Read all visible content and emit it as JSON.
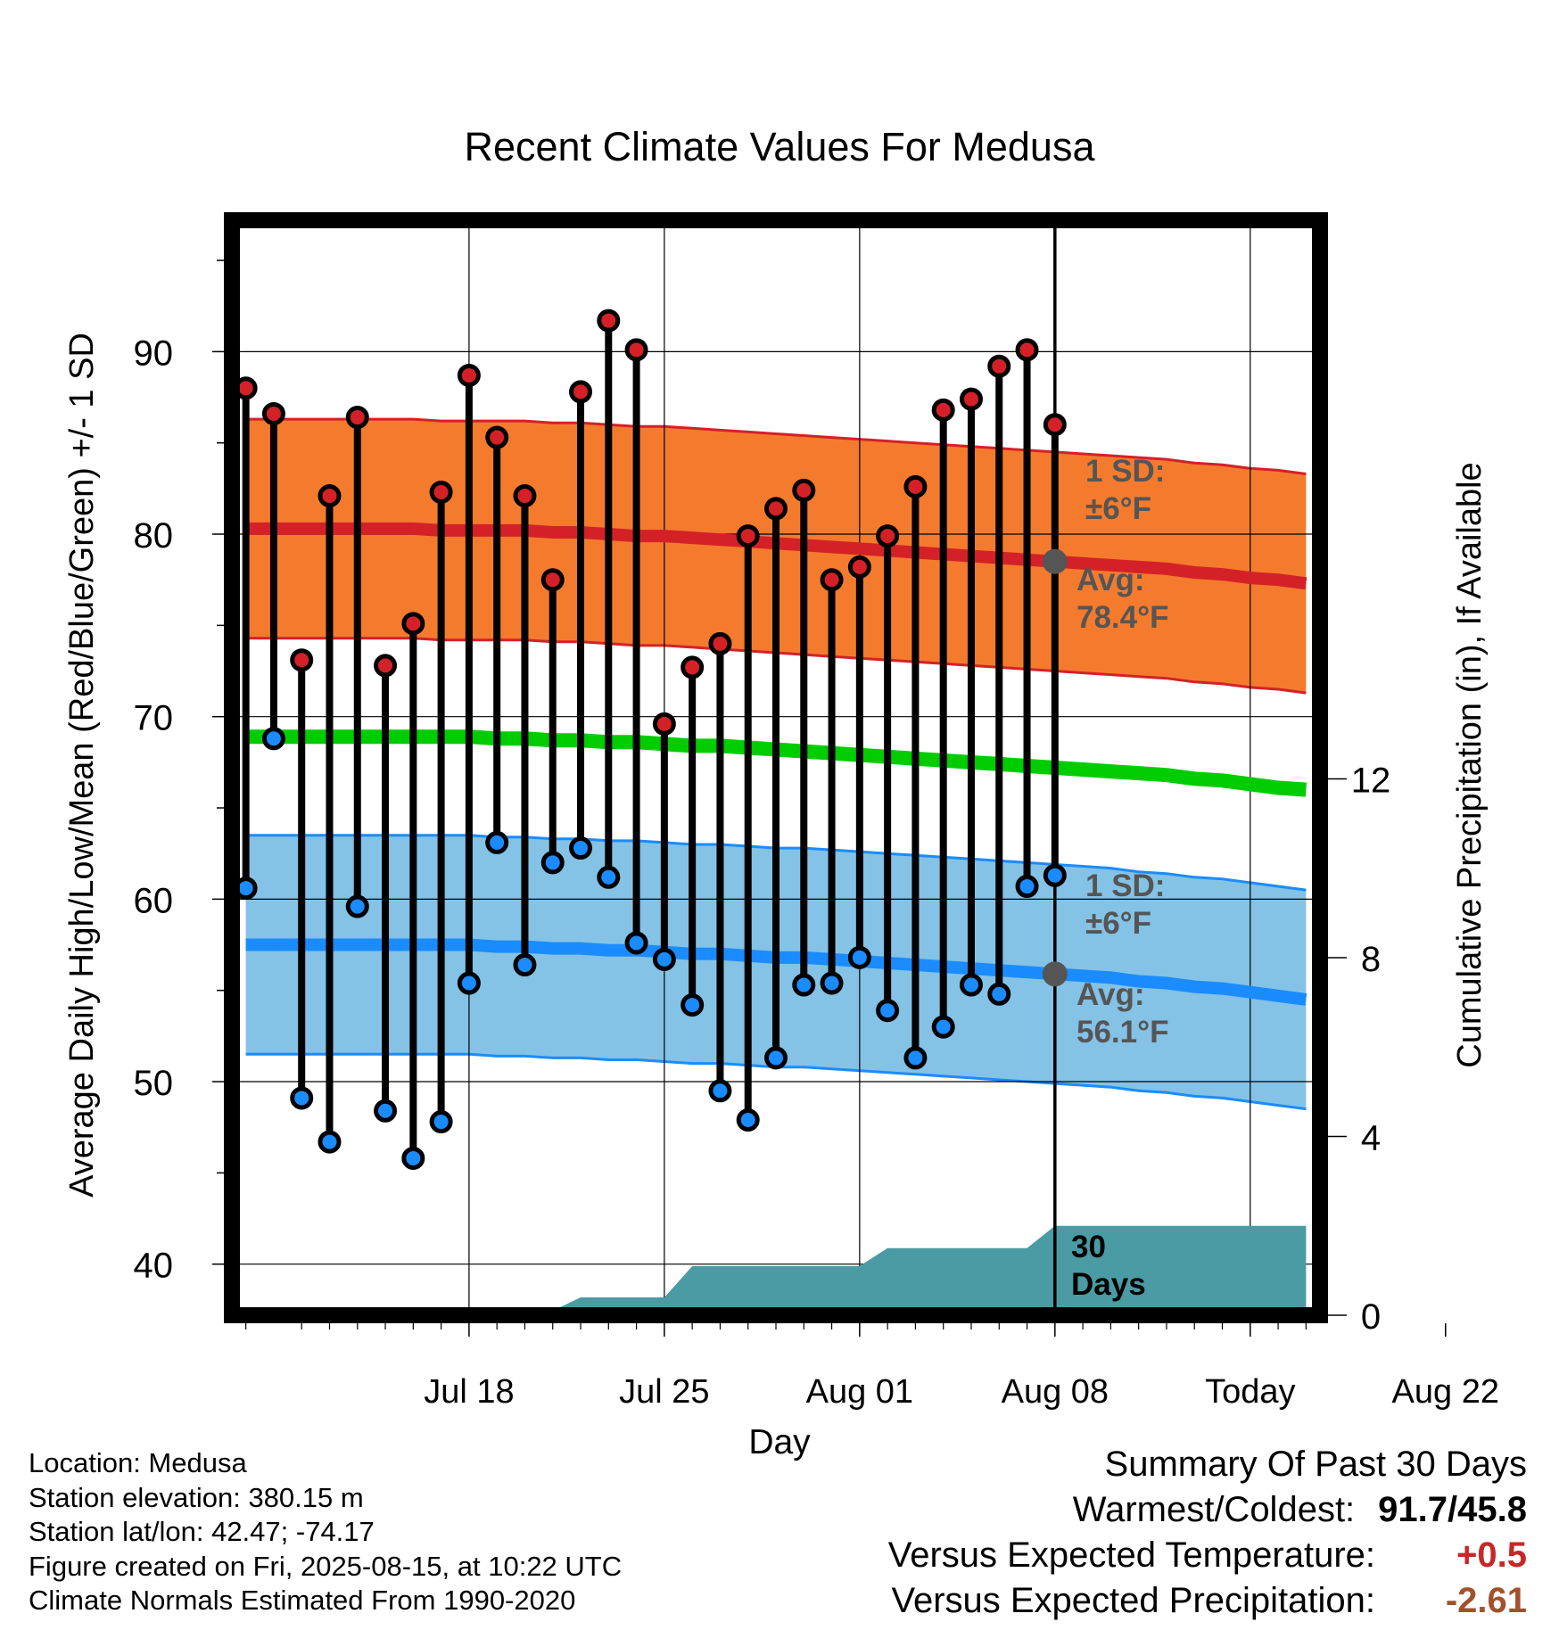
{
  "title": "Recent Climate Values For Medusa",
  "chart_data": {
    "type": "line",
    "title": "Recent Climate Values For Medusa",
    "xlabel": "Day",
    "ylabel_left": "Average Daily High/Low/Mean (Red/Blue/Green) +/- 1 SD",
    "ylabel_right": "Cumulative Precipitation (in), If Available",
    "x_ticks": [
      "Jul 18",
      "Jul 25",
      "Aug 01",
      "Aug 08",
      "Today",
      "Aug 22"
    ],
    "y_left_ticks": [
      40,
      50,
      60,
      70,
      80,
      90
    ],
    "y_right_ticks": [
      0,
      4,
      8,
      12
    ],
    "ylim_left": [
      37.2,
      97.2
    ],
    "ylim_right": [
      0,
      24.5
    ],
    "x_range_days": [
      -29.5,
      9.5
    ],
    "today_offset_days": 0,
    "days": [
      -29,
      -28,
      -27,
      -26,
      -25,
      -24,
      -23,
      -22,
      -21,
      -20,
      -19,
      -18,
      -17,
      -16,
      -15,
      -14,
      -13,
      -12,
      -11,
      -10,
      -9,
      -8,
      -7,
      -6,
      -5,
      -4,
      -3,
      -2,
      -1,
      0,
      1,
      2,
      3,
      4,
      5,
      6,
      7,
      8,
      9
    ],
    "daily_high": [
      88.0,
      86.6,
      73.1,
      82.1,
      86.4,
      72.8,
      75.1,
      82.3,
      88.7,
      85.3,
      82.1,
      77.5,
      87.8,
      91.7,
      90.1,
      69.6,
      72.7,
      74.0,
      79.9,
      81.4,
      82.4,
      77.5,
      78.2,
      79.9,
      82.6,
      86.8,
      87.4,
      89.2,
      90.1,
      86.0
    ],
    "daily_low": [
      60.6,
      68.8,
      49.1,
      46.7,
      59.6,
      48.4,
      45.8,
      47.8,
      55.4,
      63.1,
      56.4,
      62.0,
      62.8,
      61.2,
      57.6,
      56.7,
      54.2,
      49.5,
      47.9,
      51.3,
      55.3,
      55.4,
      56.8,
      53.9,
      51.3,
      53.0,
      55.3,
      54.8,
      60.7,
      61.3
    ],
    "normal_high": [
      80.3,
      80.3,
      80.3,
      80.3,
      80.3,
      80.3,
      80.3,
      80.2,
      80.2,
      80.2,
      80.2,
      80.1,
      80.1,
      80.0,
      79.9,
      79.9,
      79.8,
      79.7,
      79.6,
      79.5,
      79.4,
      79.3,
      79.2,
      79.1,
      79.0,
      78.9,
      78.8,
      78.7,
      78.6,
      78.5,
      78.4,
      78.3,
      78.2,
      78.1,
      77.9,
      77.8,
      77.6,
      77.5,
      77.3
    ],
    "normal_mean": [
      68.9,
      68.9,
      68.9,
      68.9,
      68.9,
      68.9,
      68.9,
      68.9,
      68.9,
      68.8,
      68.8,
      68.7,
      68.7,
      68.6,
      68.6,
      68.5,
      68.4,
      68.4,
      68.3,
      68.2,
      68.1,
      68.0,
      67.9,
      67.8,
      67.7,
      67.6,
      67.5,
      67.4,
      67.3,
      67.2,
      67.1,
      67.0,
      66.9,
      66.8,
      66.6,
      66.5,
      66.3,
      66.1,
      66.0
    ],
    "normal_low": [
      57.5,
      57.5,
      57.5,
      57.5,
      57.5,
      57.5,
      57.5,
      57.5,
      57.5,
      57.4,
      57.4,
      57.3,
      57.3,
      57.2,
      57.2,
      57.1,
      57.0,
      57.0,
      56.9,
      56.8,
      56.8,
      56.7,
      56.6,
      56.5,
      56.4,
      56.3,
      56.2,
      56.1,
      56.0,
      55.9,
      55.8,
      55.7,
      55.5,
      55.4,
      55.2,
      55.1,
      54.9,
      54.7,
      54.5
    ],
    "sd_high": 6,
    "sd_low": 6,
    "cumulative_precip": [
      0,
      0,
      0,
      0,
      0,
      0,
      0,
      0,
      0,
      0,
      0,
      0.1,
      0.4,
      0.4,
      0.4,
      0.4,
      1.1,
      1.1,
      1.1,
      1.1,
      1.1,
      1.1,
      1.1,
      1.5,
      1.5,
      1.5,
      1.5,
      1.5,
      1.5,
      2.0,
      2.0,
      2.0,
      2.0,
      2.0,
      2.0,
      2.0,
      2.0,
      2.0,
      2.0
    ],
    "annotations": {
      "high_sd_label": "1 SD:",
      "high_sd_value": "±6°F",
      "high_avg_label": "Avg:",
      "high_avg_value": "78.4°F",
      "low_sd_label": "1 SD:",
      "low_sd_value": "±6°F",
      "low_avg_label": "Avg:",
      "low_avg_value": "56.1°F",
      "window_label_1": "30",
      "window_label_2": "Days"
    },
    "colors": {
      "high_band": "#f47b2d",
      "high_line": "#d42128",
      "mean_line": "#00cc00",
      "low_band": "#84c2e6",
      "low_line": "#1a8cff",
      "precip": "#4a9ba3",
      "high_dot": "#d42128",
      "low_dot": "#1a8cff"
    },
    "grid": true
  },
  "info": {
    "location": "Location: Medusa",
    "elevation": "Station elevation: 380.15 m",
    "latlon": "Station lat/lon: 42.47; -74.17",
    "created": "Figure created on Fri, 2025-08-15, at 10:22 UTC",
    "normals": "Climate Normals Estimated From 1990-2020"
  },
  "summary": {
    "heading": "Summary Of Past 30 Days",
    "warm_cold_label": "Warmest/Coldest:",
    "warm_cold_value": "91.7/45.8",
    "temp_label": "Versus Expected Temperature:",
    "temp_value": "+0.5",
    "precip_label": "Versus Expected Precipitation:",
    "precip_value": "-2.61"
  }
}
